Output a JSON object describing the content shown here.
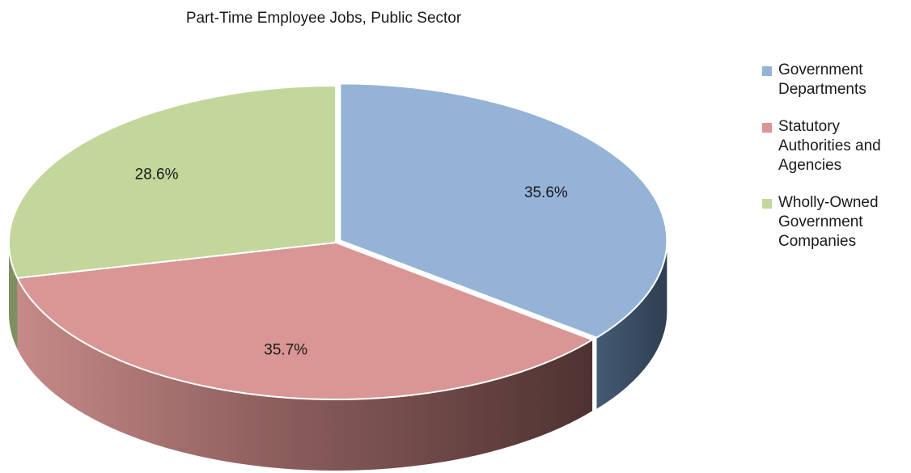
{
  "chart_data": {
    "type": "pie",
    "title": "Part-Time Employee Jobs, Public Sector",
    "slices": [
      {
        "label": "Government Departments",
        "value": 35.6,
        "display": "35.6%",
        "color": "#95B3D7"
      },
      {
        "label": "Statutory Authorities and Agencies",
        "value": 35.7,
        "display": "35.7%",
        "color": "#D99694"
      },
      {
        "label": "Wholly-Owned Government Companies",
        "value": 28.6,
        "display": "28.6%",
        "color": "#C3D69B"
      }
    ],
    "legend_position": "right",
    "style": "3d"
  }
}
